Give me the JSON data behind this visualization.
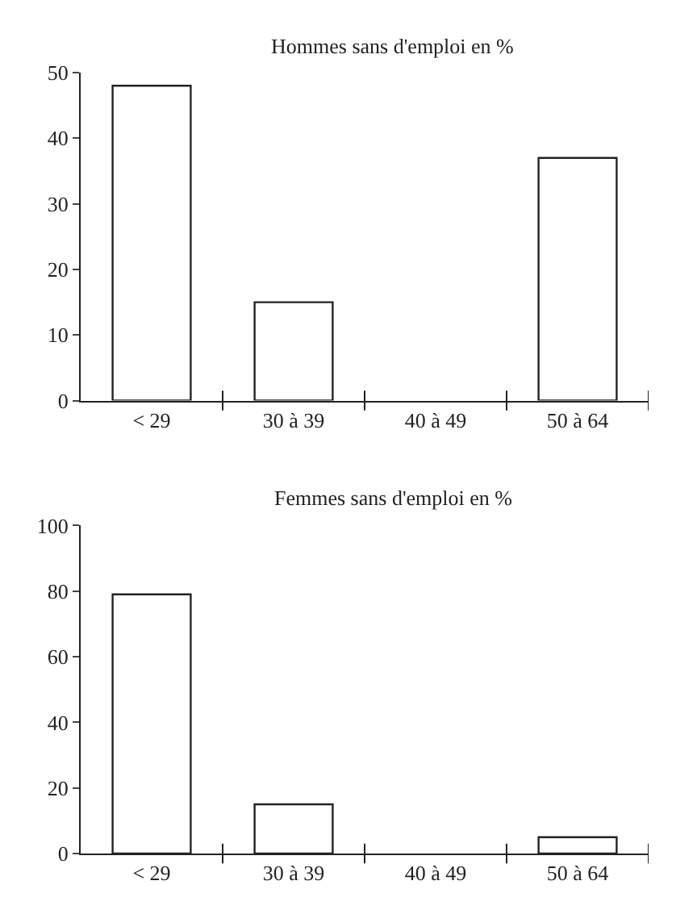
{
  "chart_data": [
    {
      "type": "bar",
      "title": "Hommes sans d'emploi en %",
      "categories": [
        "< 29",
        "30 à 39",
        "40 à 49",
        "50 à 64"
      ],
      "values": [
        48,
        15,
        null,
        37
      ],
      "color": "#ffffff",
      "ylim": [
        0,
        50
      ],
      "yticks": [
        0,
        10,
        20,
        30,
        40,
        50
      ]
    },
    {
      "type": "bar",
      "title": "Femmes sans d'emploi en %",
      "categories": [
        "< 29",
        "30 à 39",
        "40 à 49",
        "50 à 64"
      ],
      "values": [
        79,
        15,
        null,
        5
      ],
      "color": "#ffffff",
      "ylim": [
        0,
        100
      ],
      "yticks": [
        0,
        20,
        40,
        60,
        80,
        100
      ]
    }
  ]
}
